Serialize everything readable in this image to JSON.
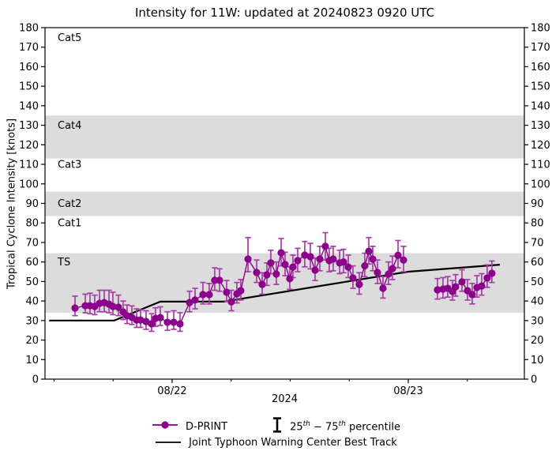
{
  "title": "Intensity for 11W: updated at 20240823 0920 UTC",
  "axes": {
    "ylabel": "Tropical Cyclone Intensity [knots]",
    "year_label": "2024"
  },
  "legend": {
    "dprint": "D-PRINT",
    "pct_q1": "25",
    "pct_sup1": "th",
    "pct_mid": " − 75",
    "pct_sup2": "th",
    "pct_tail": " percentile",
    "best_track": "Joint Typhoon Warning Center Best Track"
  },
  "chart_data": {
    "type": "scatter",
    "subtype": "errorbar-scatter-with-line",
    "x_unit": "hours since 2024-08-22 00:00 UTC",
    "xlim": [
      -12.92,
      35.8
    ],
    "ylim": [
      0,
      180
    ],
    "ytick_step": 10,
    "xticks_major": [
      {
        "t": 0,
        "label": "08/22"
      },
      {
        "t": 24,
        "label": "08/23"
      }
    ],
    "xticks_minor": [
      -12,
      -6,
      6,
      12,
      18,
      30
    ],
    "band_color": "#dcdcdc",
    "bands": [
      {
        "name": "TS",
        "from": 34,
        "to": 64.5
      },
      {
        "name": "Cat2",
        "from": 83.5,
        "to": 96
      },
      {
        "name": "Cat4",
        "from": 113,
        "to": 135
      }
    ],
    "zone_labels": [
      {
        "text": "Cat5",
        "v": 175
      },
      {
        "text": "Cat4",
        "v": 130
      },
      {
        "text": "Cat3",
        "v": 110
      },
      {
        "text": "Cat2",
        "v": 90
      },
      {
        "text": "Cat1",
        "v": 80
      },
      {
        "text": "TS",
        "v": 60
      }
    ],
    "dprint": {
      "name": "D-PRINT",
      "color": "#8b008b",
      "errorbar_color": "#a73ca7",
      "gap_break_hours": 2.6,
      "points": [
        [
          -9.87,
          36.4,
          32.5,
          42.5
        ],
        [
          -8.83,
          37.6,
          34.0,
          43.5
        ],
        [
          -8.35,
          37.6,
          33.5,
          44.0
        ],
        [
          -7.87,
          37.2,
          33.0,
          43.0
        ],
        [
          -7.38,
          38.8,
          34.5,
          45.5
        ],
        [
          -6.9,
          39.2,
          34.5,
          45.5
        ],
        [
          -6.42,
          38.4,
          34.0,
          45.5
        ],
        [
          -6.02,
          37.2,
          33.0,
          44.5
        ],
        [
          -5.46,
          36.8,
          32.5,
          43.0
        ],
        [
          -4.98,
          34.4,
          30.5,
          40.0
        ],
        [
          -4.58,
          32.4,
          28.5,
          38.0
        ],
        [
          -4.09,
          31.6,
          28.0,
          37.5
        ],
        [
          -3.61,
          30.3,
          26.5,
          36.0
        ],
        [
          -3.21,
          30.3,
          26.5,
          35.5
        ],
        [
          -2.65,
          29.5,
          25.5,
          35.0
        ],
        [
          -2.09,
          28.3,
          24.5,
          33.5
        ],
        [
          -1.69,
          31.1,
          27.0,
          36.5
        ],
        [
          -1.2,
          31.5,
          27.5,
          37.0
        ],
        [
          -0.48,
          29.1,
          25.0,
          34.5
        ],
        [
          0.16,
          29.1,
          25.5,
          35.0
        ],
        [
          0.8,
          28.3,
          24.5,
          34.0
        ],
        [
          1.77,
          39.2,
          34.5,
          45.0
        ],
        [
          2.33,
          40.5,
          36.0,
          46.5
        ],
        [
          3.13,
          43.3,
          38.5,
          49.5
        ],
        [
          3.77,
          43.3,
          38.5,
          49.0
        ],
        [
          4.33,
          50.6,
          45.5,
          57.0
        ],
        [
          4.82,
          50.6,
          45.0,
          56.5
        ],
        [
          5.54,
          44.5,
          40.0,
          50.5
        ],
        [
          6.02,
          39.6,
          35.0,
          45.5
        ],
        [
          6.58,
          43.7,
          39.0,
          49.5
        ],
        [
          6.98,
          45.3,
          40.5,
          51.0
        ],
        [
          7.71,
          61.5,
          55.0,
          72.5
        ],
        [
          8.59,
          54.6,
          49.5,
          61.0
        ],
        [
          9.15,
          48.5,
          43.5,
          54.5
        ],
        [
          9.63,
          53.4,
          48.0,
          59.5
        ],
        [
          10.03,
          59.5,
          54.0,
          66.0
        ],
        [
          10.59,
          53.8,
          48.5,
          60.0
        ],
        [
          11.08,
          64.7,
          58.0,
          72.0
        ],
        [
          11.48,
          58.7,
          53.0,
          65.0
        ],
        [
          11.96,
          51.4,
          46.0,
          57.5
        ],
        [
          12.28,
          57.4,
          52.0,
          63.5
        ],
        [
          12.76,
          60.7,
          55.0,
          67.0
        ],
        [
          13.48,
          63.5,
          57.5,
          70.5
        ],
        [
          14.05,
          62.7,
          56.5,
          69.5
        ],
        [
          14.53,
          55.8,
          50.5,
          62.0
        ],
        [
          15.01,
          61.5,
          55.5,
          68.0
        ],
        [
          15.57,
          68.0,
          61.0,
          75.0
        ],
        [
          15.97,
          60.7,
          55.0,
          67.0
        ],
        [
          16.37,
          61.5,
          55.5,
          68.0
        ],
        [
          17.02,
          59.5,
          54.0,
          66.0
        ],
        [
          17.42,
          60.0,
          54.5,
          66.5
        ],
        [
          17.9,
          57.4,
          52.0,
          63.5
        ],
        [
          18.38,
          51.8,
          46.5,
          58.0
        ],
        [
          19.02,
          48.5,
          43.5,
          54.5
        ],
        [
          19.58,
          58.0,
          52.5,
          64.5
        ],
        [
          19.99,
          65.5,
          59.0,
          72.5
        ],
        [
          20.39,
          61.5,
          55.5,
          68.0
        ],
        [
          20.87,
          54.6,
          49.0,
          61.0
        ],
        [
          21.43,
          46.5,
          41.5,
          52.5
        ],
        [
          21.99,
          53.8,
          48.5,
          60.0
        ],
        [
          22.39,
          56.6,
          51.0,
          63.0
        ],
        [
          22.96,
          63.4,
          57.0,
          71.0
        ],
        [
          23.52,
          61.0,
          55.0,
          68.0
        ],
        [
          26.97,
          45.7,
          41.0,
          51.5
        ],
        [
          27.53,
          46.1,
          41.5,
          52.0
        ],
        [
          28.01,
          46.5,
          42.0,
          52.5
        ],
        [
          28.49,
          44.9,
          40.5,
          50.5
        ],
        [
          28.81,
          47.3,
          42.5,
          53.5
        ],
        [
          29.46,
          49.8,
          45.0,
          56.0
        ],
        [
          30.02,
          45.3,
          40.5,
          51.0
        ],
        [
          30.5,
          43.3,
          38.5,
          49.0
        ],
        [
          30.98,
          46.9,
          42.0,
          53.0
        ],
        [
          31.46,
          47.7,
          43.0,
          54.0
        ],
        [
          32.02,
          51.8,
          47.0,
          58.5
        ],
        [
          32.5,
          54.2,
          49.5,
          60.5
        ]
      ]
    },
    "best_track": {
      "name": "Joint Typhoon Warning Center Best Track",
      "color": "#000000",
      "points": [
        [
          -12.5,
          30
        ],
        [
          -5.9,
          30
        ],
        [
          -1.2,
          39.7
        ],
        [
          5.2,
          39.7
        ],
        [
          24,
          55
        ],
        [
          33.3,
          58.6
        ]
      ]
    }
  }
}
